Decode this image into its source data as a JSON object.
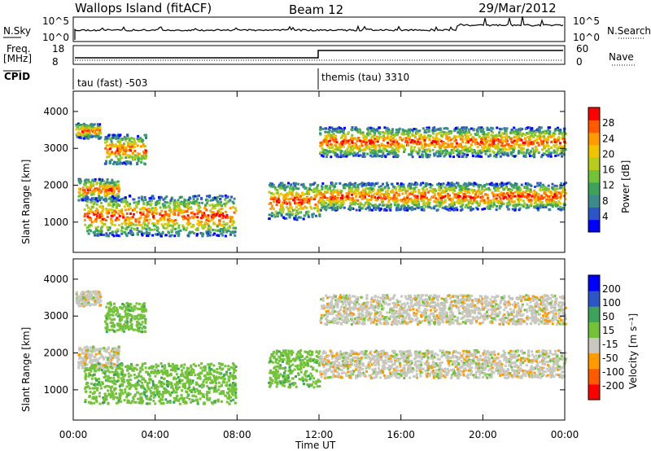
{
  "header": {
    "station": "Wallops Island (fitACF)",
    "beam": "Beam 12",
    "date": "29/Mar/2012"
  },
  "panels": {
    "nsky_label": "N.Sky",
    "nsky_ticks": [
      "10^5",
      "10^0"
    ],
    "nsearch_label": "N.Search",
    "nsearch_ticks": [
      "10^5",
      "10^0"
    ],
    "freq_label": "Freq.",
    "freq_unit": "[MHz]",
    "freq_ticks": [
      "18",
      "8"
    ],
    "nave_label": "Nave",
    "nave_ticks": [
      "60",
      "0"
    ],
    "cpid_label": "CPID",
    "cpid_segments": [
      {
        "label": "tau (fast) -503",
        "start_h": 0,
        "end_h": 12
      },
      {
        "label": "themis (tau) 3310",
        "start_h": 12,
        "end_h": 24
      }
    ]
  },
  "chart_data": [
    {
      "type": "heatmap",
      "title": "",
      "xlabel": "Time UT",
      "ylabel": "Slant Range [km]",
      "x_ticks": [
        "00:00",
        "04:00",
        "08:00",
        "12:00",
        "16:00",
        "20:00",
        "00:00"
      ],
      "xlim_hours": [
        0,
        24
      ],
      "y_ticks": [
        "4000",
        "3000",
        "2000",
        "1000"
      ],
      "ylim": [
        180,
        4550
      ],
      "colorbar": {
        "label": "Power [dB]",
        "ticks": [
          "28",
          "24",
          "20",
          "16",
          "12",
          "8",
          "4"
        ],
        "range": [
          0,
          30
        ]
      },
      "echo_bands": [
        {
          "t0": 0.1,
          "t1": 1.3,
          "r0": 3300,
          "r1": 3700
        },
        {
          "t0": 0.2,
          "t1": 2.2,
          "r0": 1600,
          "r1": 2200
        },
        {
          "t0": 0.5,
          "t1": 7.9,
          "r0": 650,
          "r1": 1750
        },
        {
          "t0": 1.5,
          "t1": 3.5,
          "r0": 2600,
          "r1": 3400
        },
        {
          "t0": 9.5,
          "t1": 12.0,
          "r0": 1100,
          "r1": 2100
        },
        {
          "t0": 12.0,
          "t1": 24.0,
          "r0": 2800,
          "r1": 3600
        },
        {
          "t0": 12.0,
          "t1": 24.0,
          "r0": 1350,
          "r1": 2100
        }
      ],
      "colors": [
        "#0000ff",
        "#2c55c7",
        "#3c8a8a",
        "#3ea35a",
        "#74c23a",
        "#b8cc1e",
        "#f0c400",
        "#ff9a00",
        "#ff5a00",
        "#ff0000"
      ]
    },
    {
      "type": "heatmap",
      "title": "",
      "xlabel": "Time UT",
      "ylabel": "Slant Range [km]",
      "x_ticks": [
        "00:00",
        "04:00",
        "08:00",
        "12:00",
        "16:00",
        "20:00",
        "00:00"
      ],
      "xlim_hours": [
        0,
        24
      ],
      "y_ticks": [
        "4000",
        "3000",
        "2000",
        "1000"
      ],
      "ylim": [
        180,
        4550
      ],
      "colorbar": {
        "label": "Velocity [m s⁻¹]",
        "ticks": [
          "200",
          "100",
          "50",
          "15",
          "-15",
          "-50",
          "-100",
          "-200"
        ],
        "range": [
          -250,
          250
        ]
      },
      "echo_bands": [
        {
          "t0": 0.1,
          "t1": 1.3,
          "r0": 3300,
          "r1": 3700,
          "v": 0
        },
        {
          "t0": 0.2,
          "t1": 2.2,
          "r0": 1600,
          "r1": 2200,
          "v": 0
        },
        {
          "t0": 0.5,
          "t1": 7.9,
          "r0": 650,
          "r1": 1750,
          "v": 35
        },
        {
          "t0": 1.5,
          "t1": 3.5,
          "r0": 2600,
          "r1": 3400,
          "v": 35
        },
        {
          "t0": 9.5,
          "t1": 12.0,
          "r0": 1100,
          "r1": 2100,
          "v": 35
        },
        {
          "t0": 12.0,
          "t1": 24.0,
          "r0": 2800,
          "r1": 3600,
          "v": 0
        },
        {
          "t0": 12.0,
          "t1": 24.0,
          "r0": 1350,
          "r1": 2100,
          "v": 0
        }
      ],
      "colors": [
        "#ff0000",
        "#ff5a00",
        "#ff9a00",
        "#c8c8c0",
        "#74c23a",
        "#3ea35a",
        "#2c55c7",
        "#0000ff"
      ]
    }
  ]
}
